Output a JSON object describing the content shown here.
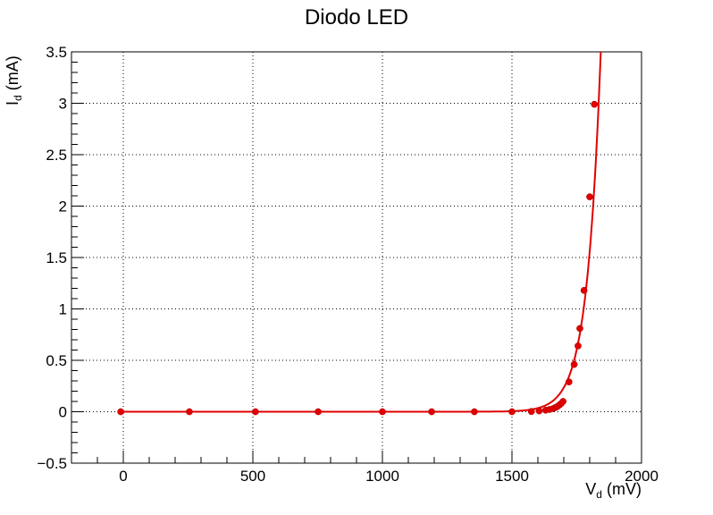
{
  "chart_data": {
    "type": "scatter",
    "title": "Diodo LED",
    "xlabel": {
      "main": "V",
      "sub": "d",
      "unit": "(mV)"
    },
    "ylabel": {
      "main": "I",
      "sub": "d",
      "unit": "(mA)"
    },
    "xlim": [
      -200,
      2000
    ],
    "ylim": [
      -0.5,
      3.5
    ],
    "x_ticks": [
      0,
      500,
      1000,
      1500,
      2000
    ],
    "y_ticks": [
      -0.5,
      0,
      0.5,
      1,
      1.5,
      2,
      2.5,
      3,
      3.5
    ],
    "grid": true,
    "series": [
      {
        "color": "#e00000",
        "marker": "circle",
        "x": [
          -10,
          255,
          510,
          752,
          1000,
          1190,
          1355,
          1500,
          1575,
          1605,
          1630,
          1645,
          1658,
          1667,
          1675,
          1683,
          1690,
          1697,
          1720,
          1740,
          1755,
          1762,
          1778,
          1800,
          1818
        ],
        "y": [
          0,
          0,
          0,
          0,
          0,
          0,
          0,
          0,
          0.002,
          0.008,
          0.015,
          0.022,
          0.03,
          0.04,
          0.05,
          0.065,
          0.08,
          0.1,
          0.29,
          0.46,
          0.64,
          0.81,
          1.18,
          2.09,
          2.99
        ]
      }
    ],
    "fit_curve": {
      "color": "#e00000",
      "model": "exponential",
      "I0_mA": 2.44e-15,
      "nVt_mV": 52.8
    }
  }
}
